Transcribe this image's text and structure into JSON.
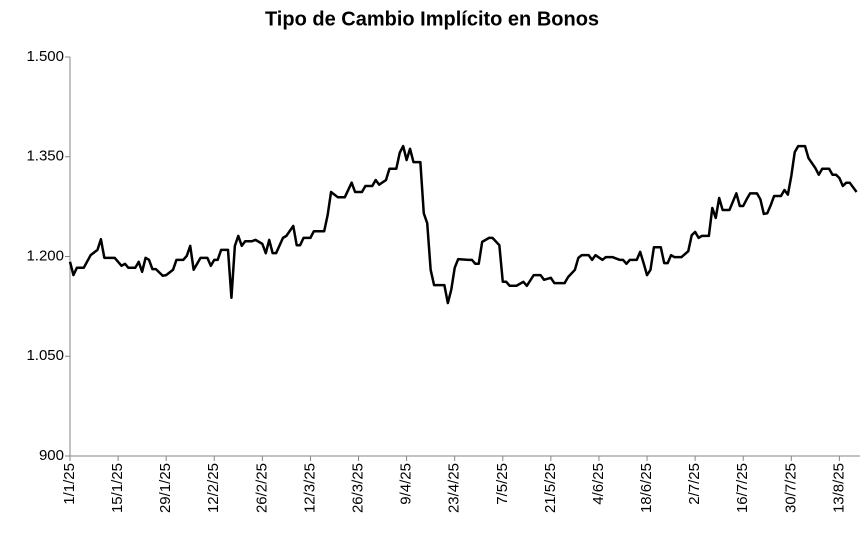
{
  "chart_data": {
    "type": "line",
    "title": "Tipo de Cambio Implícito en Bonos",
    "color": "#000000",
    "x": [
      "1/1/25",
      "2/1/25",
      "3/1/25",
      "5/1/25",
      "7/1/25",
      "9/1/25",
      "10/1/25",
      "11/1/25",
      "14/1/25",
      "16/1/25",
      "17/1/25",
      "18/1/25",
      "20/1/25",
      "21/1/25",
      "22/1/25",
      "23/1/25",
      "24/1/25",
      "25/1/25",
      "26/1/25",
      "28/1/25",
      "29/1/25",
      "31/1/25",
      "1/2/25",
      "3/2/25",
      "4/2/25",
      "5/2/25",
      "6/2/25",
      "8/2/25",
      "10/2/25",
      "11/2/25",
      "12/2/25",
      "13/2/25",
      "14/2/25",
      "16/2/25",
      "17/2/25",
      "18/2/25",
      "19/2/25",
      "20/2/25",
      "21/2/25",
      "23/2/25",
      "24/2/25",
      "26/2/25",
      "27/2/25",
      "28/2/25",
      "1/3/25",
      "2/3/25",
      "4/3/25",
      "5/3/25",
      "7/3/25",
      "8/3/25",
      "9/3/25",
      "10/3/25",
      "12/3/25",
      "13/3/25",
      "16/3/25",
      "17/3/25",
      "18/3/25",
      "20/3/25",
      "22/3/25",
      "24/3/25",
      "25/3/25",
      "27/3/25",
      "28/3/25",
      "30/3/25",
      "31/3/25",
      "1/4/25",
      "3/4/25",
      "4/4/25",
      "6/4/25",
      "7/4/25",
      "8/4/25",
      "9/4/25",
      "10/4/25",
      "11/4/25",
      "13/4/25",
      "14/4/25",
      "15/4/25",
      "16/4/25",
      "17/4/25",
      "20/4/25",
      "21/4/25",
      "22/4/25",
      "23/4/25",
      "24/4/25",
      "27/4/25",
      "28/4/25",
      "29/4/25",
      "30/4/25",
      "1/5/25",
      "3/5/25",
      "4/5/25",
      "6/5/25",
      "7/5/25",
      "8/5/25",
      "9/5/25",
      "11/5/25",
      "13/5/25",
      "14/5/25",
      "16/5/25",
      "18/5/25",
      "19/5/25",
      "21/5/25",
      "22/5/25",
      "25/5/25",
      "26/5/25",
      "28/5/25",
      "29/5/25",
      "30/5/25",
      "1/6/25",
      "2/6/25",
      "3/6/25",
      "5/6/25",
      "6/6/25",
      "8/6/25",
      "10/6/25",
      "11/6/25",
      "12/6/25",
      "13/6/25",
      "15/6/25",
      "16/6/25",
      "17/6/25",
      "18/6/25",
      "19/6/25",
      "20/6/25",
      "22/6/25",
      "23/6/25",
      "24/6/25",
      "25/6/25",
      "26/6/25",
      "28/6/25",
      "30/6/25",
      "1/7/25",
      "2/7/25",
      "3/7/25",
      "4/7/25",
      "6/7/25",
      "7/7/25",
      "8/7/25",
      "9/7/25",
      "10/7/25",
      "12/7/25",
      "14/7/25",
      "15/7/25",
      "16/7/25",
      "17/7/25",
      "18/7/25",
      "20/7/25",
      "21/7/25",
      "22/7/25",
      "23/7/25",
      "24/7/25",
      "25/7/25",
      "27/7/25",
      "28/7/25",
      "29/7/25",
      "30/7/25",
      "31/7/25",
      "1/8/25",
      "3/8/25",
      "4/8/25",
      "6/8/25",
      "7/8/25",
      "8/8/25",
      "10/8/25",
      "11/8/25",
      "12/8/25",
      "13/8/25",
      "14/8/25",
      "15/8/25",
      "16/8/25",
      "18/8/25"
    ],
    "values": [
      1192,
      1172,
      1183,
      1183,
      1202,
      1210,
      1226,
      1198,
      1198,
      1186,
      1189,
      1183,
      1183,
      1192,
      1177,
      1198,
      1195,
      1181,
      1181,
      1171,
      1172,
      1180,
      1195,
      1195,
      1201,
      1216,
      1180,
      1198,
      1198,
      1186,
      1195,
      1195,
      1210,
      1210,
      1138,
      1216,
      1231,
      1216,
      1223,
      1223,
      1225,
      1219,
      1205,
      1225,
      1205,
      1205,
      1228,
      1231,
      1246,
      1217,
      1217,
      1228,
      1228,
      1238,
      1238,
      1262,
      1297,
      1289,
      1289,
      1311,
      1297,
      1297,
      1306,
      1306,
      1315,
      1308,
      1315,
      1332,
      1332,
      1356,
      1366,
      1345,
      1362,
      1342,
      1342,
      1265,
      1250,
      1180,
      1157,
      1157,
      1130,
      1150,
      1183,
      1196,
      1195,
      1195,
      1189,
      1189,
      1222,
      1228,
      1228,
      1217,
      1162,
      1162,
      1156,
      1156,
      1162,
      1156,
      1172,
      1172,
      1165,
      1168,
      1160,
      1160,
      1169,
      1180,
      1198,
      1202,
      1202,
      1195,
      1202,
      1195,
      1199,
      1199,
      1195,
      1195,
      1189,
      1195,
      1195,
      1207,
      1190,
      1172,
      1180,
      1214,
      1214,
      1190,
      1190,
      1202,
      1199,
      1199,
      1208,
      1232,
      1237,
      1228,
      1231,
      1231,
      1273,
      1258,
      1288,
      1270,
      1270,
      1295,
      1276,
      1276,
      1286,
      1295,
      1295,
      1286,
      1264,
      1265,
      1277,
      1291,
      1291,
      1300,
      1293,
      1321,
      1357,
      1366,
      1366,
      1348,
      1333,
      1323,
      1332,
      1332,
      1323,
      1323,
      1318,
      1306,
      1311,
      1311,
      1297
    ],
    "xlim": [
      "1/1/25",
      "19/8/25"
    ],
    "xticks": [
      "1/1/25",
      "15/1/25",
      "29/1/25",
      "12/2/25",
      "26/2/25",
      "12/3/25",
      "26/3/25",
      "9/4/25",
      "23/4/25",
      "7/5/25",
      "21/5/25",
      "4/6/25",
      "18/6/25",
      "2/7/25",
      "16/7/25",
      "30/7/25",
      "13/8/25"
    ],
    "ylim": [
      900,
      1500
    ],
    "yticks": [
      900,
      {
        "value": 1050,
        "label": "1.050"
      },
      {
        "value": 1200,
        "label": "1.200"
      },
      {
        "value": 1350,
        "label": "1.350"
      },
      {
        "value": 1500,
        "label": "1.500"
      }
    ],
    "grid": false
  }
}
